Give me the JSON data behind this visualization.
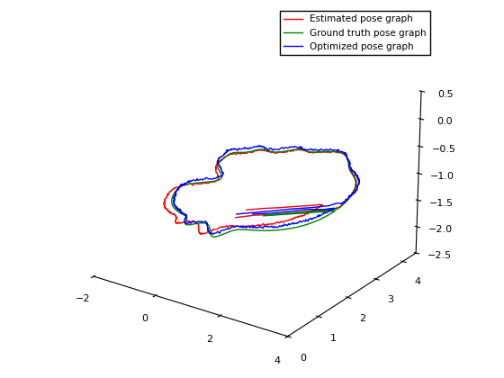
{
  "legend_labels": [
    "Estimated pose graph",
    "Ground truth pose graph",
    "Optimized pose graph"
  ],
  "colors": [
    "red",
    "green",
    "blue"
  ],
  "xlim": [
    -2,
    4
  ],
  "ylim": [
    0,
    4.5
  ],
  "zlim": [
    -2.5,
    0.5
  ],
  "x_ticks": [
    -2,
    0,
    2,
    4
  ],
  "y_ticks": [
    0,
    1,
    2,
    3,
    4
  ],
  "z_ticks": [
    -2.5,
    -2.0,
    -1.5,
    -1.0,
    -0.5,
    0.0,
    0.5
  ],
  "elev": 22,
  "azim": -55,
  "linewidth": 1.0
}
